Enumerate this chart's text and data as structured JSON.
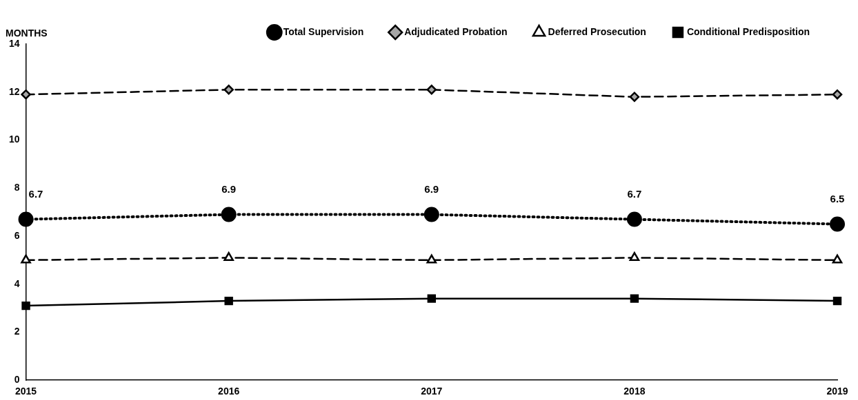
{
  "chart_data": {
    "type": "line",
    "ylabel": "MONTHS",
    "categories": [
      "2015",
      "2016",
      "2017",
      "2018",
      "2019"
    ],
    "series": [
      {
        "name": "Total Supervision",
        "color": "#000000",
        "marker": "circle",
        "line_style": "dotted",
        "values": [
          6.7,
          6.9,
          6.9,
          6.7,
          6.5
        ],
        "value_labels": [
          "6.7",
          "6.9",
          "6.9",
          "6.7",
          "6.5"
        ]
      },
      {
        "name": "Adjudicated Probation",
        "color": "#a6a6a6",
        "marker": "diamond",
        "line_style": "dashed",
        "values": [
          11.9,
          12.1,
          12.1,
          11.8,
          11.9
        ]
      },
      {
        "name": "Deferred Prosecution",
        "color": "#ffffff",
        "marker": "triangle",
        "line_style": "dashed",
        "values": [
          5.0,
          5.1,
          5.0,
          5.1,
          5.0
        ]
      },
      {
        "name": "Conditional Predisposition",
        "color": "#000000",
        "marker": "square",
        "line_style": "solid",
        "values": [
          3.1,
          3.3,
          3.4,
          3.4,
          3.3
        ]
      }
    ],
    "ylim": [
      0,
      14
    ],
    "yticks": [
      0,
      2,
      4,
      6,
      8,
      10,
      12,
      14
    ],
    "grid": false,
    "legend": "top"
  }
}
